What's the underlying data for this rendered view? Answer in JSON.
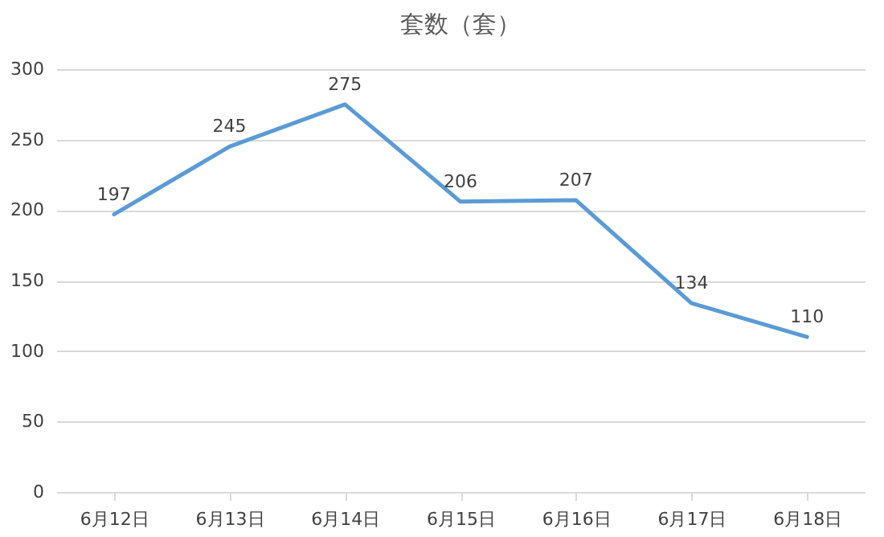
{
  "chart_data": {
    "type": "line",
    "title": "套数（套）",
    "categories": [
      "6月12日",
      "6月13日",
      "6月14日",
      "6月15日",
      "6月16日",
      "6月17日",
      "6月18日"
    ],
    "series": [
      {
        "color": "#5b9bd5",
        "values": [
          197,
          245,
          275,
          206,
          207,
          134,
          110
        ]
      }
    ],
    "ylim": [
      0,
      300
    ],
    "yticks": [
      0,
      50,
      100,
      150,
      200,
      250,
      300
    ],
    "grid": "y",
    "data_labels": true,
    "marker": "none",
    "line_style": "solid",
    "legend": false
  }
}
